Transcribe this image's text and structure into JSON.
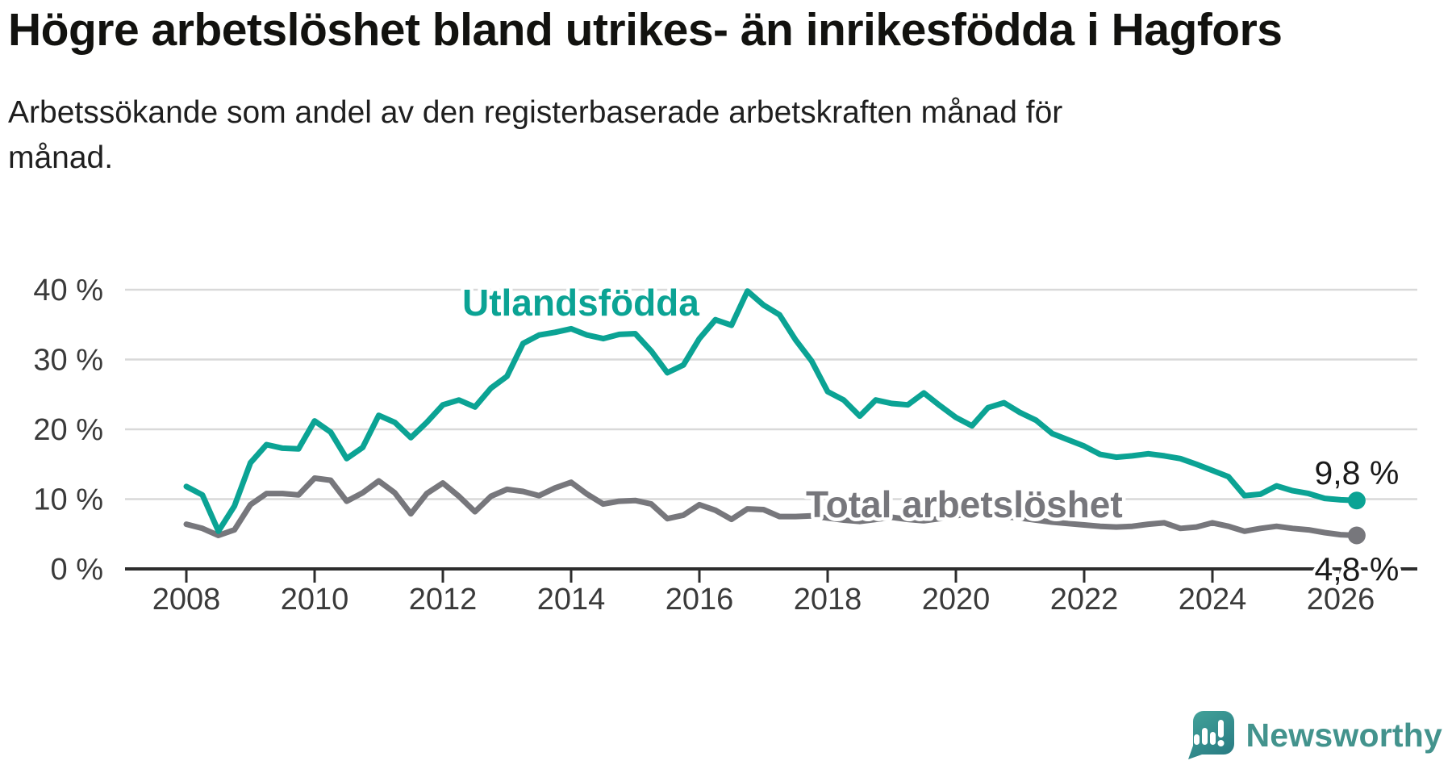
{
  "header": {
    "title": "Högre arbetslöshet bland utrikes- än inrikesfödda i Hagfors",
    "subtitle": "Arbetssökande som andel av den registerbaserade arbetskraften månad för månad."
  },
  "colors": {
    "foreign_born_line": "#0ba394",
    "total_line": "#77777c",
    "grid": "#d9d9d9",
    "axis": "#2d2d2d",
    "tick_text": "#3a3a3a",
    "annotation_text": "#1a1a1a",
    "background": "#ffffff",
    "logo_teal": "#43938d",
    "logo_teal_dark": "#2b7f85"
  },
  "chart_data": {
    "type": "line",
    "title": "Högre arbetslöshet bland utrikes- än inrikesfödda i Hagfors",
    "xlabel": "",
    "ylabel": "",
    "grid": true,
    "legend_position": "inline-labels",
    "xlim": [
      2007.05,
      2027.2
    ],
    "ylim": [
      0,
      41.6
    ],
    "xticks": [
      2008,
      2010,
      2012,
      2014,
      2016,
      2018,
      2020,
      2022,
      2024,
      2026
    ],
    "yticks": [
      {
        "value": 0,
        "label": "0 %"
      },
      {
        "value": 10,
        "label": "10 %"
      },
      {
        "value": 20,
        "label": "20 %"
      },
      {
        "value": 30,
        "label": "30 %"
      },
      {
        "value": 40,
        "label": "40 %"
      }
    ],
    "x": [
      2008.0,
      2008.25,
      2008.5,
      2008.75,
      2009.0,
      2009.25,
      2009.5,
      2009.75,
      2010.0,
      2010.25,
      2010.5,
      2010.75,
      2011.0,
      2011.25,
      2011.5,
      2011.75,
      2012.0,
      2012.25,
      2012.5,
      2012.75,
      2013.0,
      2013.25,
      2013.5,
      2013.75,
      2014.0,
      2014.25,
      2014.5,
      2014.75,
      2015.0,
      2015.25,
      2015.5,
      2015.75,
      2016.0,
      2016.25,
      2016.5,
      2016.75,
      2017.0,
      2017.25,
      2017.5,
      2017.75,
      2018.0,
      2018.25,
      2018.5,
      2018.75,
      2019.0,
      2019.25,
      2019.5,
      2019.75,
      2020.0,
      2020.25,
      2020.5,
      2020.75,
      2021.0,
      2021.25,
      2021.5,
      2021.75,
      2022.0,
      2022.25,
      2022.5,
      2022.75,
      2023.0,
      2023.25,
      2023.5,
      2023.75,
      2024.0,
      2024.25,
      2024.5,
      2024.75,
      2025.0,
      2025.25,
      2025.5,
      2025.75,
      2026.0,
      2026.25
    ],
    "series": [
      {
        "name": "Total arbetslöshet",
        "color": "#77777c",
        "end_label": "4,8 %",
        "end_label_position": "below",
        "values": [
          6.4,
          5.8,
          4.8,
          5.6,
          9.2,
          10.8,
          10.8,
          10.6,
          13.0,
          12.7,
          9.7,
          10.9,
          12.6,
          10.9,
          7.9,
          10.8,
          12.3,
          10.4,
          8.2,
          10.4,
          11.4,
          11.1,
          10.5,
          11.6,
          12.4,
          10.7,
          9.3,
          9.7,
          9.8,
          9.3,
          7.2,
          7.7,
          9.2,
          8.4,
          7.1,
          8.6,
          8.5,
          7.5,
          7.5,
          7.6,
          7.3,
          7.0,
          6.8,
          7.1,
          7.4,
          7.1,
          6.9,
          7.2,
          7.6,
          8.1,
          7.9,
          7.5,
          7.3,
          7.0,
          6.7,
          6.5,
          6.3,
          6.1,
          6.0,
          6.1,
          6.4,
          6.6,
          5.8,
          6.0,
          6.6,
          6.1,
          5.4,
          5.8,
          6.1,
          5.8,
          5.6,
          5.2,
          4.9,
          4.8
        ]
      },
      {
        "name": "Utlandsfödda",
        "color": "#0ba394",
        "end_label": "9,8 %",
        "end_label_position": "above",
        "values": [
          11.8,
          10.6,
          5.4,
          9.0,
          15.2,
          17.8,
          17.3,
          17.2,
          21.2,
          19.6,
          15.8,
          17.4,
          22.0,
          21.0,
          18.8,
          21.0,
          23.5,
          24.2,
          23.2,
          25.9,
          27.6,
          32.3,
          33.5,
          33.9,
          34.4,
          33.5,
          33.0,
          33.6,
          33.7,
          31.2,
          28.1,
          29.2,
          33.0,
          35.7,
          34.9,
          39.8,
          37.8,
          36.4,
          32.8,
          29.8,
          25.4,
          24.2,
          21.9,
          24.2,
          23.7,
          23.5,
          25.2,
          23.4,
          21.7,
          20.5,
          23.1,
          23.8,
          22.4,
          21.3,
          19.4,
          18.5,
          17.6,
          16.4,
          16.0,
          16.2,
          16.5,
          16.2,
          15.8,
          15.0,
          14.1,
          13.2,
          10.5,
          10.7,
          11.9,
          11.2,
          10.8,
          10.1,
          9.9,
          9.8
        ]
      }
    ],
    "series_inline_labels": [
      {
        "series": 1,
        "text": "Utlandsfödda",
        "at_x": 2014.15,
        "at_y": 36.3
      },
      {
        "series": 0,
        "text": "Total arbetslöshet",
        "at_x": 2020.13,
        "at_y": 7.4
      }
    ]
  },
  "branding": {
    "logo_text": "Newsworthy"
  }
}
